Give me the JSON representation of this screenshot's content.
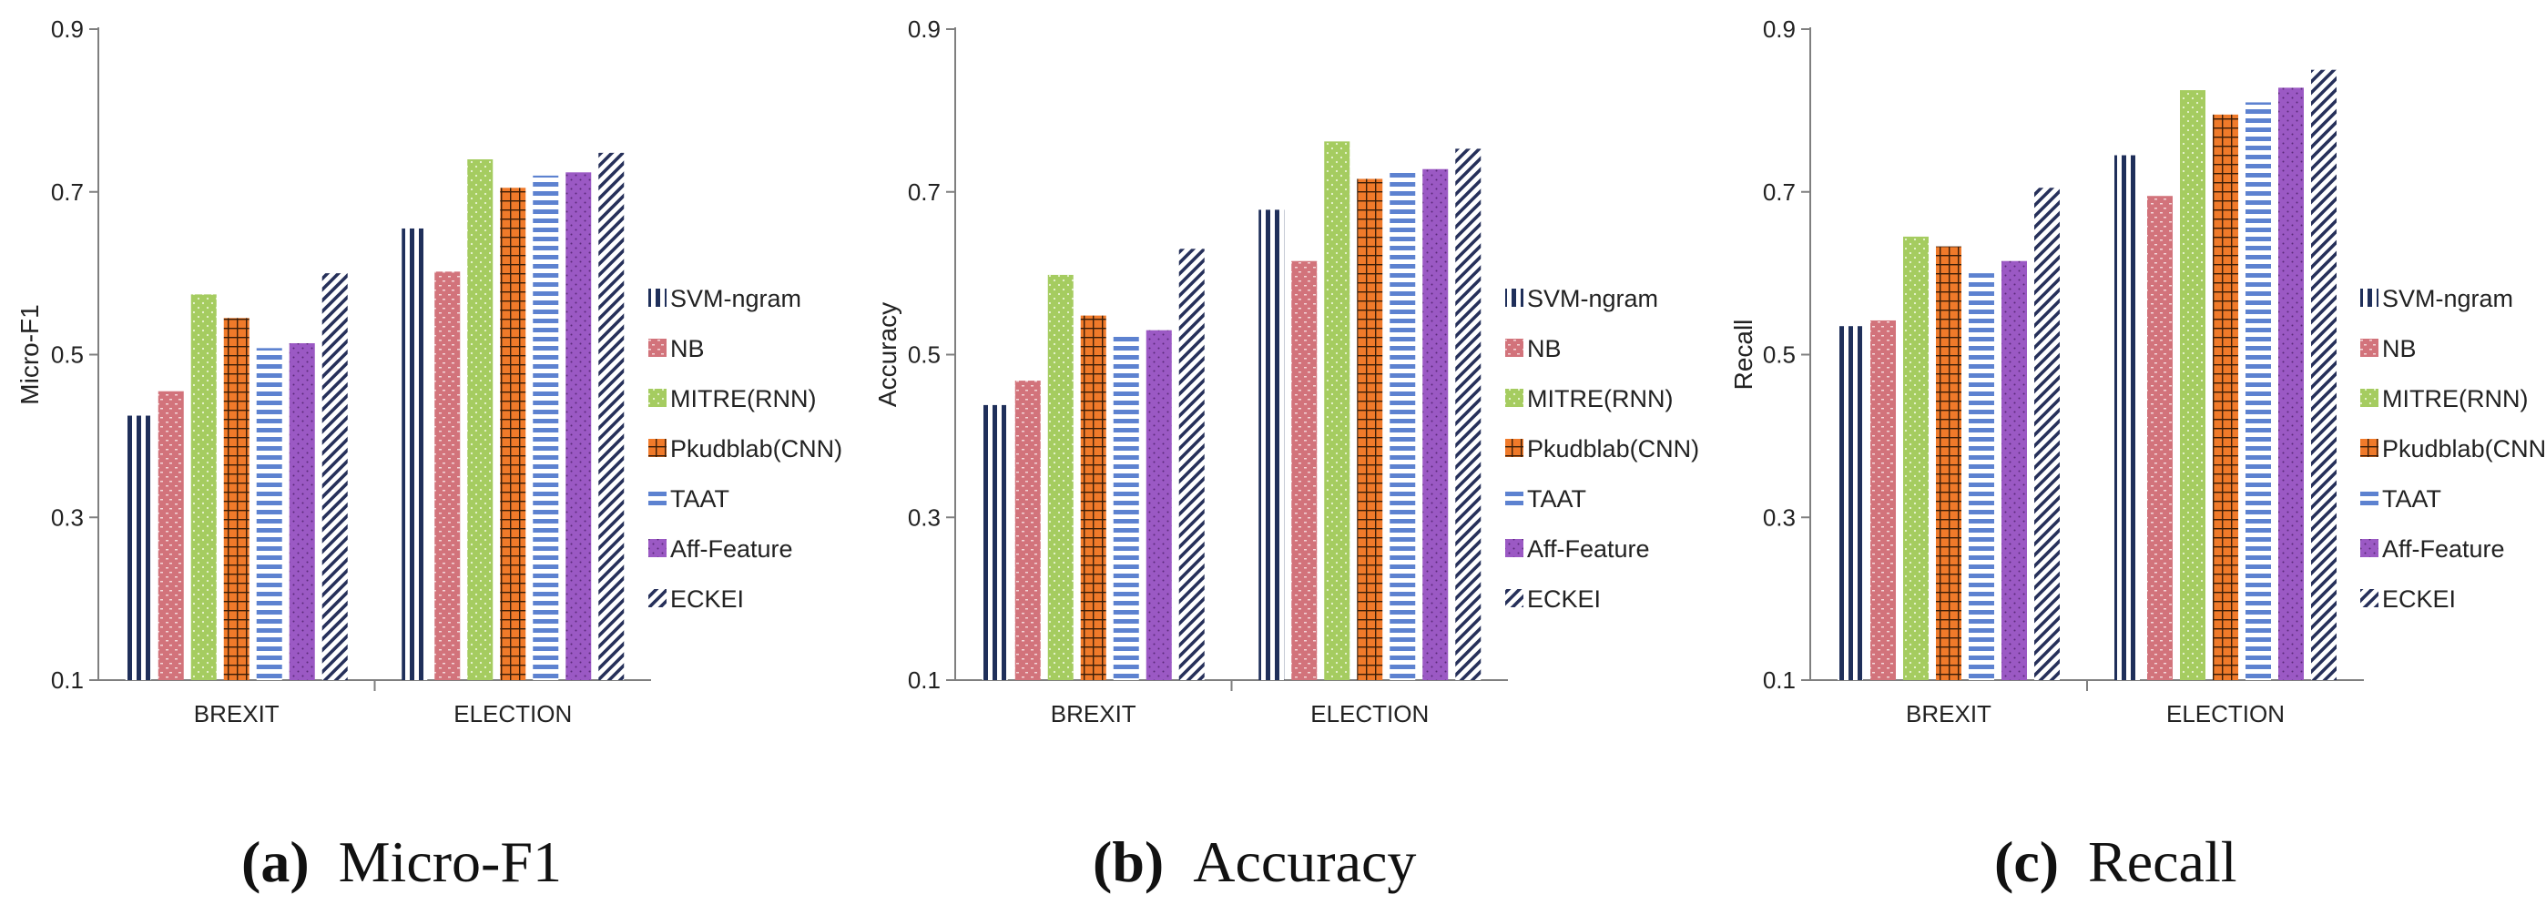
{
  "chart_data": [
    {
      "type": "bar",
      "ylabel": "Micro-F1",
      "caption_letter": "(a)",
      "caption_text": "Micro-F1",
      "ylim": [
        0.1,
        0.9
      ],
      "yticks": [
        "0.1",
        "0.3",
        "0.5",
        "0.7",
        "0.9"
      ],
      "categories": [
        "BREXIT",
        "ELECTION"
      ],
      "series": [
        {
          "name": "SVM-ngram",
          "values": [
            0.425,
            0.655
          ]
        },
        {
          "name": "NB",
          "values": [
            0.455,
            0.602
          ]
        },
        {
          "name": "MITRE(RNN)",
          "values": [
            0.574,
            0.74
          ]
        },
        {
          "name": "Pkudblab(CNN)",
          "values": [
            0.545,
            0.705
          ]
        },
        {
          "name": "TAAT",
          "values": [
            0.508,
            0.72
          ]
        },
        {
          "name": "Aff-Feature",
          "values": [
            0.514,
            0.724
          ]
        },
        {
          "name": "ECKEI",
          "values": [
            0.6,
            0.748
          ]
        }
      ]
    },
    {
      "type": "bar",
      "ylabel": "Accuracy",
      "caption_letter": "(b)",
      "caption_text": "Accuracy",
      "ylim": [
        0.1,
        0.9
      ],
      "yticks": [
        "0.1",
        "0.3",
        "0.5",
        "0.7",
        "0.9"
      ],
      "categories": [
        "BREXIT",
        "ELECTION"
      ],
      "series": [
        {
          "name": "SVM-ngram",
          "values": [
            0.438,
            0.678
          ]
        },
        {
          "name": "NB",
          "values": [
            0.468,
            0.615
          ]
        },
        {
          "name": "MITRE(RNN)",
          "values": [
            0.598,
            0.762
          ]
        },
        {
          "name": "Pkudblab(CNN)",
          "values": [
            0.548,
            0.716
          ]
        },
        {
          "name": "TAAT",
          "values": [
            0.522,
            0.728
          ]
        },
        {
          "name": "Aff-Feature",
          "values": [
            0.53,
            0.728
          ]
        },
        {
          "name": "ECKEI",
          "values": [
            0.63,
            0.753
          ]
        }
      ]
    },
    {
      "type": "bar",
      "ylabel": "Recall",
      "caption_letter": "(c)",
      "caption_text": "Recall",
      "ylim": [
        0.1,
        0.9
      ],
      "yticks": [
        "0.1",
        "0.3",
        "0.5",
        "0.7",
        "0.9"
      ],
      "categories": [
        "BREXIT",
        "ELECTION"
      ],
      "series": [
        {
          "name": "SVM-ngram",
          "values": [
            0.535,
            0.745
          ]
        },
        {
          "name": "NB",
          "values": [
            0.542,
            0.695
          ]
        },
        {
          "name": "MITRE(RNN)",
          "values": [
            0.645,
            0.825
          ]
        },
        {
          "name": "Pkudblab(CNN)",
          "values": [
            0.633,
            0.795
          ]
        },
        {
          "name": "TAAT",
          "values": [
            0.6,
            0.81
          ]
        },
        {
          "name": "Aff-Feature",
          "values": [
            0.615,
            0.828
          ]
        },
        {
          "name": "ECKEI",
          "values": [
            0.705,
            0.85
          ]
        }
      ]
    }
  ],
  "colors": {
    "SVM-ngram": "#1f2f5a",
    "NB": "#d2737b",
    "MITRE(RNN)": "#a5cc60",
    "Pkudblab(CNN)": "#f07a2a",
    "TAAT": "#5d82d0",
    "Aff-Feature": "#9b59c4",
    "ECKEI": "#26305a"
  }
}
